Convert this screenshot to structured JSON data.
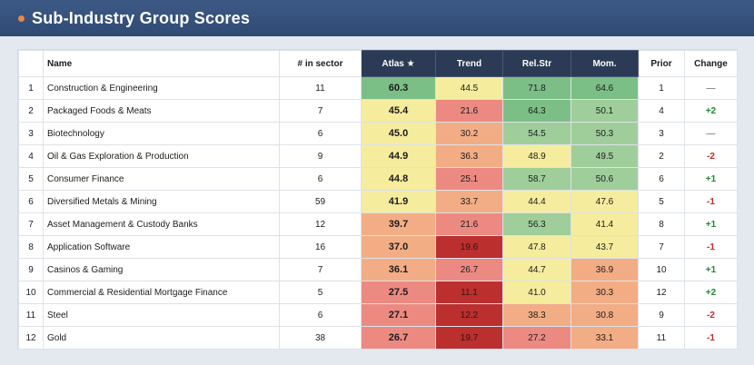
{
  "header": {
    "title": "Sub-Industry Group Scores"
  },
  "columns": {
    "rank": "",
    "name": "Name",
    "in_sector": "# in sector",
    "atlas": "Atlas ★",
    "trend": "Trend",
    "relstr": "Rel.Str",
    "mom": "Mom.",
    "prior": "Prior",
    "change": "Change"
  },
  "colors": {
    "dark_green": "#7cbf86",
    "green": "#9fce9b",
    "yellow": "#f6ec9d",
    "orange": "#f3ad85",
    "salmon": "#ec8a82",
    "dark_red": "#bb2f2f",
    "positive": "#1f8a2e",
    "negative": "#c62828"
  },
  "rows": [
    {
      "rank": "1",
      "name": "Construction & Engineering",
      "in_sector": "11",
      "atlas": "60.3",
      "trend": "44.5",
      "relstr": "71.8",
      "mom": "64.6",
      "prior": "1",
      "change": "—"
    },
    {
      "rank": "2",
      "name": "Packaged Foods & Meats",
      "in_sector": "7",
      "atlas": "45.4",
      "trend": "21.6",
      "relstr": "64.3",
      "mom": "50.1",
      "prior": "4",
      "change": "+2"
    },
    {
      "rank": "3",
      "name": "Biotechnology",
      "in_sector": "6",
      "atlas": "45.0",
      "trend": "30.2",
      "relstr": "54.5",
      "mom": "50.3",
      "prior": "3",
      "change": "—"
    },
    {
      "rank": "4",
      "name": "Oil & Gas Exploration & Production",
      "in_sector": "9",
      "atlas": "44.9",
      "trend": "36.3",
      "relstr": "48.9",
      "mom": "49.5",
      "prior": "2",
      "change": "-2"
    },
    {
      "rank": "5",
      "name": "Consumer Finance",
      "in_sector": "6",
      "atlas": "44.8",
      "trend": "25.1",
      "relstr": "58.7",
      "mom": "50.6",
      "prior": "6",
      "change": "+1"
    },
    {
      "rank": "6",
      "name": "Diversified Metals & Mining",
      "in_sector": "59",
      "atlas": "41.9",
      "trend": "33.7",
      "relstr": "44.4",
      "mom": "47.6",
      "prior": "5",
      "change": "-1"
    },
    {
      "rank": "7",
      "name": "Asset Management & Custody Banks",
      "in_sector": "12",
      "atlas": "39.7",
      "trend": "21.6",
      "relstr": "56.3",
      "mom": "41.4",
      "prior": "8",
      "change": "+1"
    },
    {
      "rank": "8",
      "name": "Application Software",
      "in_sector": "16",
      "atlas": "37.0",
      "trend": "19.6",
      "relstr": "47.8",
      "mom": "43.7",
      "prior": "7",
      "change": "-1"
    },
    {
      "rank": "9",
      "name": "Casinos & Gaming",
      "in_sector": "7",
      "atlas": "36.1",
      "trend": "26.7",
      "relstr": "44.7",
      "mom": "36.9",
      "prior": "10",
      "change": "+1"
    },
    {
      "rank": "10",
      "name": "Commercial & Residential Mortgage Finance",
      "in_sector": "5",
      "atlas": "27.5",
      "trend": "11.1",
      "relstr": "41.0",
      "mom": "30.3",
      "prior": "12",
      "change": "+2"
    },
    {
      "rank": "11",
      "name": "Steel",
      "in_sector": "6",
      "atlas": "27.1",
      "trend": "12.2",
      "relstr": "38.3",
      "mom": "30.8",
      "prior": "9",
      "change": "-2"
    },
    {
      "rank": "12",
      "name": "Gold",
      "in_sector": "38",
      "atlas": "26.7",
      "trend": "19.7",
      "relstr": "27.2",
      "mom": "33.1",
      "prior": "11",
      "change": "-1"
    }
  ],
  "cell_colors": [
    {
      "atlas": "dark_green",
      "trend": "yellow",
      "relstr": "dark_green",
      "mom": "dark_green"
    },
    {
      "atlas": "yellow",
      "trend": "salmon",
      "relstr": "dark_green",
      "mom": "green"
    },
    {
      "atlas": "yellow",
      "trend": "orange",
      "relstr": "green",
      "mom": "green"
    },
    {
      "atlas": "yellow",
      "trend": "orange",
      "relstr": "yellow",
      "mom": "green"
    },
    {
      "atlas": "yellow",
      "trend": "salmon",
      "relstr": "green",
      "mom": "green"
    },
    {
      "atlas": "yellow",
      "trend": "orange",
      "relstr": "yellow",
      "mom": "yellow"
    },
    {
      "atlas": "orange",
      "trend": "salmon",
      "relstr": "green",
      "mom": "yellow"
    },
    {
      "atlas": "orange",
      "trend": "dark_red",
      "relstr": "yellow",
      "mom": "yellow"
    },
    {
      "atlas": "orange",
      "trend": "salmon",
      "relstr": "yellow",
      "mom": "orange"
    },
    {
      "atlas": "salmon",
      "trend": "dark_red",
      "relstr": "yellow",
      "mom": "orange"
    },
    {
      "atlas": "salmon",
      "trend": "dark_red",
      "relstr": "orange",
      "mom": "orange"
    },
    {
      "atlas": "salmon",
      "trend": "dark_red",
      "relstr": "salmon",
      "mom": "orange"
    }
  ]
}
